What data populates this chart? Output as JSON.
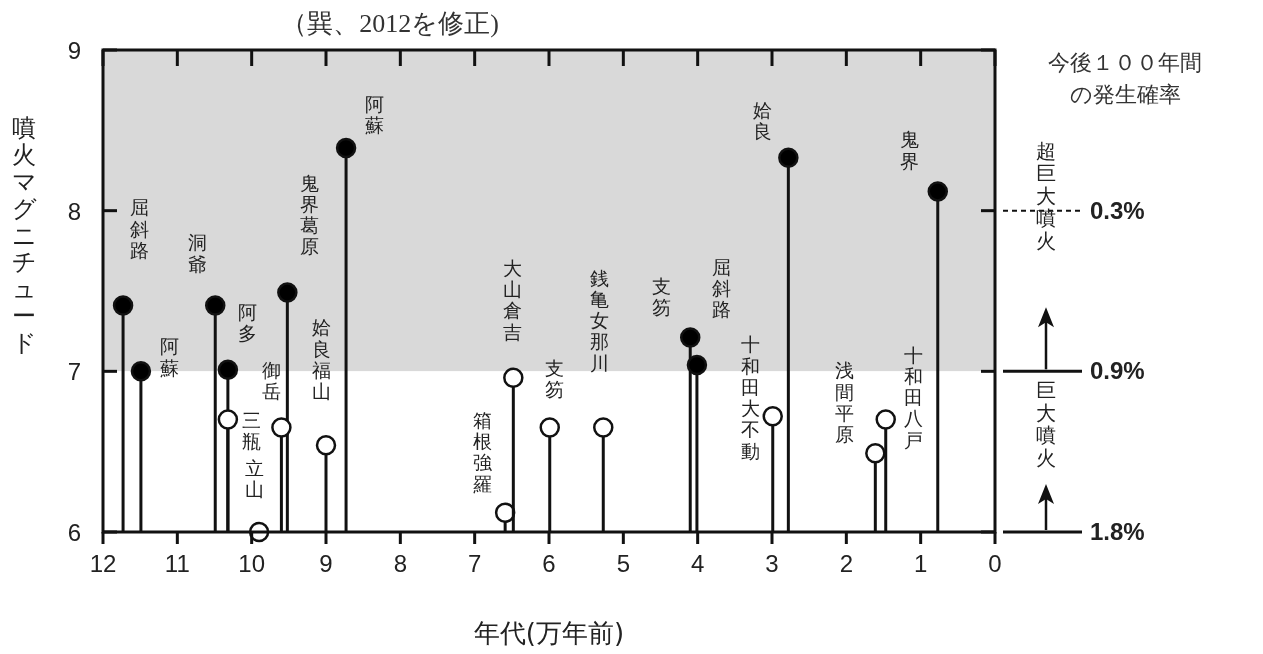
{
  "chart_data": {
    "type": "lollipop",
    "title": "（巽、2012を修正)",
    "xlabel": "年代(万年前)",
    "ylabel": "噴火マグニチュード",
    "xlim": [
      12,
      0
    ],
    "ylim": [
      6,
      9
    ],
    "xticks": [
      12,
      11,
      10,
      9,
      8,
      7,
      6,
      5,
      4,
      3,
      2,
      1,
      0
    ],
    "yticks": [
      6,
      7,
      8,
      9
    ],
    "grid": false,
    "marker": "circle",
    "series": [
      {
        "color": "#000000",
        "x": [
          11.73,
          11.49,
          10.49,
          10.32,
          9.52,
          8.73,
          4.1,
          4.01,
          2.78,
          0.77
        ],
        "values": [
          7.41,
          7.0,
          7.41,
          7.01,
          7.49,
          8.39,
          7.21,
          7.04,
          8.33,
          8.12
        ]
      },
      {
        "color": "#ffffff",
        "x": [
          10.32,
          9.6,
          9.9,
          9.0,
          6.59,
          6.48,
          5.99,
          5.27,
          2.99,
          1.61,
          1.47
        ],
        "values": [
          6.7,
          6.65,
          6.0,
          6.54,
          6.12,
          6.96,
          6.65,
          6.65,
          6.72,
          6.49,
          6.7
        ]
      }
    ],
    "bands": [
      {
        "axis": "y",
        "from": 7,
        "to": 9,
        "color": "#d9d9d9",
        "label": "超巨大噴火"
      },
      {
        "axis": "y",
        "from": 6,
        "to": 7,
        "color": "#ffffff",
        "label": "巨大噴火"
      }
    ],
    "annotations": [
      {
        "text": "屈斜路",
        "x": 11.73,
        "y": 7.41
      },
      {
        "text": "阿蘇",
        "x": 11.49,
        "y": 7.0
      },
      {
        "text": "洞爺",
        "x": 10.49,
        "y": 7.41
      },
      {
        "text": "阿多",
        "x": 10.32,
        "y": 7.01
      },
      {
        "text": "三瓶",
        "x": 10.32,
        "y": 6.7
      },
      {
        "text": "御岳",
        "x": 9.6,
        "y": 6.65
      },
      {
        "text": "立山",
        "x": 9.9,
        "y": 6.0
      },
      {
        "text": "鬼界葛原",
        "x": 9.52,
        "y": 7.49
      },
      {
        "text": "姶良福山",
        "x": 9.0,
        "y": 6.54
      },
      {
        "text": "阿蘇",
        "x": 8.73,
        "y": 8.39
      },
      {
        "text": "箱根強羅",
        "x": 6.59,
        "y": 6.12
      },
      {
        "text": "大山倉吉",
        "x": 6.48,
        "y": 6.96
      },
      {
        "text": "支笏",
        "x": 5.99,
        "y": 6.65
      },
      {
        "text": "銭亀女那川",
        "x": 5.27,
        "y": 6.65
      },
      {
        "text": "支笏",
        "x": 4.1,
        "y": 7.21
      },
      {
        "text": "屈斜路",
        "x": 4.01,
        "y": 7.04
      },
      {
        "text": "十和田大不動",
        "x": 2.99,
        "y": 6.72
      },
      {
        "text": "姶良",
        "x": 2.78,
        "y": 8.33
      },
      {
        "text": "鬼界",
        "x": 0.77,
        "y": 8.12
      },
      {
        "text": "浅間平原",
        "x": 1.61,
        "y": 6.49
      },
      {
        "text": "十和田八戸",
        "x": 1.47,
        "y": 6.7
      },
      "0.3%",
      "0.9%",
      "1.8%",
      "今後１００年間の発生確率"
    ]
  }
}
